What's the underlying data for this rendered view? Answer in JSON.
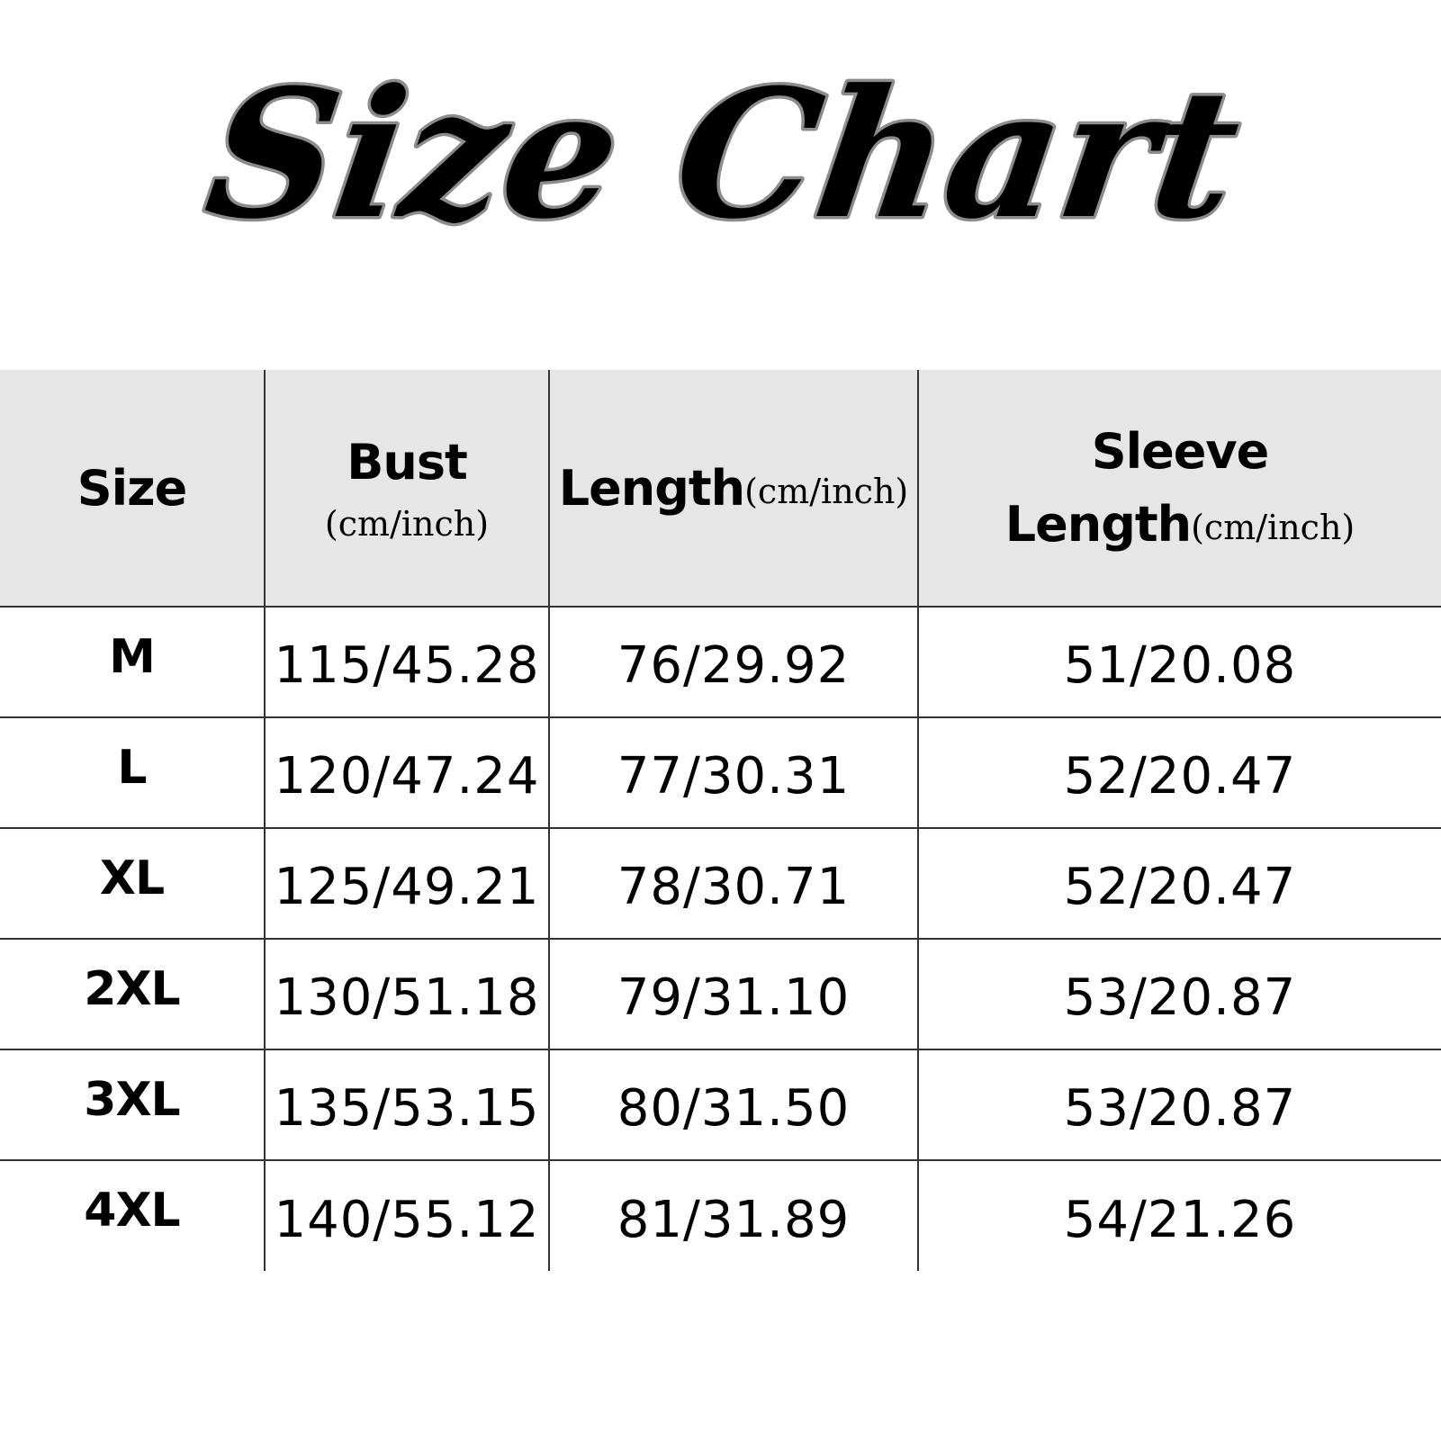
{
  "title": "Size Chart",
  "colors": {
    "header_bg": "#e6e6e6",
    "grid_line": "#333333",
    "title_fill": "#000000",
    "title_outline": "#8c8c8c"
  },
  "table": {
    "headers": [
      {
        "label": "Size",
        "unit": ""
      },
      {
        "label": "Bust",
        "unit": "(cm/inch)"
      },
      {
        "label": "Length",
        "unit": "(cm/inch)"
      },
      {
        "label_line1": "Sleeve",
        "label": "Length",
        "unit": "(cm/inch)"
      }
    ],
    "rows": [
      {
        "size": "M",
        "bust": "115/45.28",
        "length": "76/29.92",
        "sleeve": "51/20.08"
      },
      {
        "size": "L",
        "bust": "120/47.24",
        "length": "77/30.31",
        "sleeve": "52/20.47"
      },
      {
        "size": "XL",
        "bust": "125/49.21",
        "length": "78/30.71",
        "sleeve": "52/20.47"
      },
      {
        "size": "2XL",
        "bust": "130/51.18",
        "length": "79/31.10",
        "sleeve": "53/20.87"
      },
      {
        "size": "3XL",
        "bust": "135/53.15",
        "length": "80/31.50",
        "sleeve": "53/20.87"
      },
      {
        "size": "4XL",
        "bust": "140/55.12",
        "length": "81/31.89",
        "sleeve": "54/21.26"
      }
    ]
  }
}
